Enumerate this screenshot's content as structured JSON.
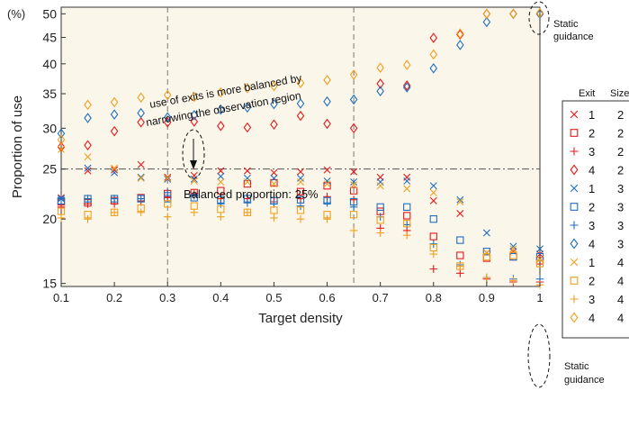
{
  "chart_data": {
    "type": "scatter",
    "xlabel": "Target density",
    "ylabel": "Proportion of use",
    "y_unit": "(%)",
    "y_scale": "log",
    "xlim": [
      0.1,
      1.0
    ],
    "ylim": [
      14.8,
      51.5
    ],
    "xticks": [
      "0.1",
      "0.2",
      "0.3",
      "0.4",
      "0.5",
      "0.6",
      "0.7",
      "0.8",
      "0.9",
      "1"
    ],
    "yticks": [
      "15",
      "20",
      "25",
      "30",
      "35",
      "40",
      "45",
      "50"
    ],
    "grid": false,
    "legend": {
      "position": "right",
      "header_exit": "Exit",
      "header_size": "Size",
      "entries": [
        {
          "exit": "1",
          "size": "2",
          "marker": "x",
          "color": "#e41a1c"
        },
        {
          "exit": "2",
          "size": "2",
          "marker": "square",
          "color": "#e41a1c"
        },
        {
          "exit": "3",
          "size": "2",
          "marker": "plus",
          "color": "#e41a1c"
        },
        {
          "exit": "4",
          "size": "2",
          "marker": "diamond",
          "color": "#e41a1c"
        },
        {
          "exit": "1",
          "size": "3",
          "marker": "x",
          "color": "#1f6fbf"
        },
        {
          "exit": "2",
          "size": "3",
          "marker": "square",
          "color": "#1f6fbf"
        },
        {
          "exit": "3",
          "size": "3",
          "marker": "plus",
          "color": "#1f6fbf"
        },
        {
          "exit": "4",
          "size": "3",
          "marker": "diamond",
          "color": "#1f6fbf"
        },
        {
          "exit": "1",
          "size": "4",
          "marker": "x",
          "color": "#f0a020"
        },
        {
          "exit": "2",
          "size": "4",
          "marker": "square",
          "color": "#f0a020"
        },
        {
          "exit": "3",
          "size": "4",
          "marker": "plus",
          "color": "#f0a020"
        },
        {
          "exit": "4",
          "size": "4",
          "marker": "diamond",
          "color": "#f0a020"
        }
      ]
    },
    "x": [
      0.1,
      0.15,
      0.2,
      0.25,
      0.3,
      0.35,
      0.4,
      0.45,
      0.5,
      0.55,
      0.6,
      0.65,
      0.7,
      0.75,
      0.8,
      0.85,
      0.9,
      0.95,
      1.0
    ],
    "series": [
      {
        "exit": "1",
        "size": "2",
        "marker": "x",
        "color": "#e41a1c",
        "values": [
          22.0,
          24.8,
          24.9,
          25.5,
          24.1,
          24.3,
          24.8,
          24.8,
          24.6,
          24.7,
          24.9,
          24.7,
          24.1,
          24.1,
          21.7,
          20.5,
          17.2,
          17.3,
          17.1
        ]
      },
      {
        "exit": "2",
        "size": "2",
        "marker": "square",
        "color": "#e41a1c",
        "values": [
          21.6,
          21.5,
          21.7,
          22.0,
          22.4,
          22.5,
          22.7,
          23.4,
          23.5,
          22.6,
          23.2,
          22.7,
          20.7,
          20.3,
          18.5,
          17.0,
          16.8,
          16.9,
          16.6
        ]
      },
      {
        "exit": "3",
        "size": "2",
        "marker": "plus",
        "color": "#e41a1c",
        "values": [
          21.1,
          21.4,
          21.4,
          21.6,
          22.0,
          22.4,
          21.9,
          21.9,
          21.6,
          21.9,
          22.1,
          21.8,
          19.2,
          19.0,
          16.0,
          15.7,
          15.3,
          15.1,
          15.1
        ]
      },
      {
        "exit": "4",
        "size": "2",
        "marker": "diamond",
        "color": "#e41a1c",
        "values": [
          27.6,
          27.8,
          29.6,
          30.8,
          30.8,
          30.9,
          30.3,
          30.1,
          30.5,
          31.7,
          30.6,
          30.0,
          36.6,
          36.3,
          44.9,
          45.6,
          50.0,
          50.0,
          50.0
        ]
      },
      {
        "exit": "1",
        "size": "3",
        "marker": "x",
        "color": "#1f6fbf",
        "values": [
          21.9,
          25.1,
          24.6,
          24.1,
          23.9,
          23.9,
          24.2,
          24.0,
          24.0,
          24.0,
          23.7,
          23.6,
          23.6,
          23.7,
          23.2,
          21.8,
          18.8,
          17.7,
          17.5
        ]
      },
      {
        "exit": "2",
        "size": "3",
        "marker": "square",
        "color": "#1f6fbf",
        "values": [
          21.7,
          21.9,
          21.9,
          21.9,
          21.9,
          22.0,
          21.8,
          21.9,
          21.7,
          21.8,
          21.7,
          21.6,
          21.1,
          21.1,
          20.0,
          18.2,
          17.3,
          16.9,
          16.9
        ]
      },
      {
        "exit": "3",
        "size": "3",
        "marker": "plus",
        "color": "#1f6fbf",
        "values": [
          21.9,
          21.9,
          21.9,
          21.9,
          22.5,
          22.2,
          21.4,
          21.5,
          21.4,
          21.2,
          21.5,
          21.1,
          20.2,
          19.5,
          17.9,
          16.3,
          15.4,
          15.3,
          15.3
        ]
      },
      {
        "exit": "4",
        "size": "3",
        "marker": "diamond",
        "color": "#1f6fbf",
        "values": [
          29.3,
          31.4,
          31.9,
          32.1,
          31.5,
          31.8,
          32.6,
          32.9,
          33.4,
          33.5,
          33.8,
          34.1,
          35.4,
          36.0,
          39.2,
          43.5,
          48.2,
          50.0,
          50.0
        ]
      },
      {
        "exit": "1",
        "size": "4",
        "marker": "x",
        "color": "#f0a020",
        "values": [
          27.3,
          26.4,
          25.1,
          24.0,
          24.0,
          23.7,
          23.6,
          23.6,
          23.4,
          23.6,
          23.4,
          23.3,
          23.2,
          22.9,
          22.5,
          21.6,
          17.2,
          17.5,
          16.7
        ]
      },
      {
        "exit": "2",
        "size": "4",
        "marker": "square",
        "color": "#f0a020",
        "values": [
          20.7,
          20.4,
          20.6,
          21.0,
          21.4,
          21.2,
          20.9,
          20.6,
          20.8,
          20.8,
          20.4,
          20.4,
          19.9,
          19.6,
          17.6,
          16.2,
          16.9,
          17.0,
          16.4
        ]
      },
      {
        "exit": "3",
        "size": "4",
        "marker": "plus",
        "color": "#f0a020",
        "values": [
          20.1,
          20.0,
          20.6,
          20.6,
          20.2,
          20.6,
          20.2,
          20.6,
          20.1,
          20.0,
          20.0,
          19.0,
          18.8,
          18.6,
          17.1,
          16.2,
          15.4,
          15.2,
          14.9
        ]
      },
      {
        "exit": "4",
        "size": "4",
        "marker": "diamond",
        "color": "#f0a020",
        "values": [
          28.5,
          33.3,
          33.7,
          34.4,
          34.8,
          34.5,
          35.2,
          35.9,
          36.2,
          36.7,
          37.2,
          38.1,
          39.3,
          39.8,
          41.7,
          45.8,
          50.0,
          50.0,
          50.2
        ]
      }
    ],
    "reference_lines": {
      "horizontal_value": 25,
      "horizontal_label": "Balanced proportion: 25%",
      "vertical_values": [
        0.3,
        0.65
      ]
    },
    "annotations": {
      "arrow_text_line1": "use of exits is more balanced by",
      "arrow_text_line2": "narrowing the observation region",
      "static_top": [
        "Static",
        "guidance"
      ],
      "static_bottom": [
        "Static",
        "guidance"
      ]
    }
  }
}
